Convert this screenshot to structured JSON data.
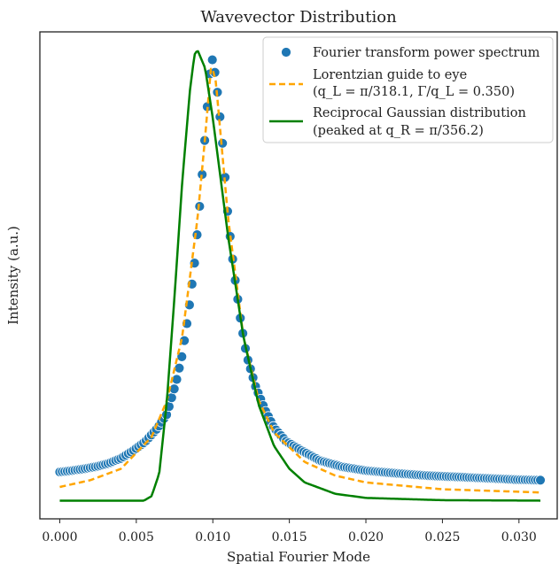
{
  "chart_data": {
    "type": "scatter",
    "title": "Wavevector Distribution",
    "xlabel": "Spatial Fourier Mode",
    "ylabel": "Intensity (a.u.)",
    "xlim": [
      -0.0013,
      0.0325
    ],
    "ylim": [
      -0.04,
      1.03
    ],
    "x_ticks": [
      0.0,
      0.005,
      0.01,
      0.015,
      0.02,
      0.025,
      0.03
    ],
    "x_tick_labels": [
      "0.000",
      "0.005",
      "0.010",
      "0.015",
      "0.020",
      "0.025",
      "0.030"
    ],
    "y_ticks_shown": false,
    "grid": false,
    "legend_position": "top-right",
    "series": [
      {
        "name": "Fourier transform power spectrum",
        "kind": "scatter",
        "color": "#1f77b4",
        "points": [
          [
            0.0,
            0.063
          ],
          [
            0.0008,
            0.066
          ],
          [
            0.0016,
            0.07
          ],
          [
            0.0024,
            0.075
          ],
          [
            0.0032,
            0.082
          ],
          [
            0.004,
            0.093
          ],
          [
            0.0048,
            0.11
          ],
          [
            0.0056,
            0.13
          ],
          [
            0.0064,
            0.16
          ],
          [
            0.007,
            0.19
          ],
          [
            0.0076,
            0.26
          ],
          [
            0.008,
            0.32
          ],
          [
            0.0084,
            0.41
          ],
          [
            0.0088,
            0.52
          ],
          [
            0.0092,
            0.67
          ],
          [
            0.0096,
            0.85
          ],
          [
            0.0099,
            0.98
          ],
          [
            0.0102,
            0.93
          ],
          [
            0.0106,
            0.8
          ],
          [
            0.011,
            0.62
          ],
          [
            0.0114,
            0.5
          ],
          [
            0.0118,
            0.4
          ],
          [
            0.0122,
            0.32
          ],
          [
            0.0128,
            0.25
          ],
          [
            0.0134,
            0.2
          ],
          [
            0.014,
            0.16
          ],
          [
            0.0148,
            0.13
          ],
          [
            0.0158,
            0.11
          ],
          [
            0.017,
            0.088
          ],
          [
            0.0185,
            0.074
          ],
          [
            0.02,
            0.066
          ],
          [
            0.022,
            0.06
          ],
          [
            0.024,
            0.055
          ],
          [
            0.026,
            0.052
          ],
          [
            0.028,
            0.049
          ],
          [
            0.03,
            0.046
          ],
          [
            0.0314,
            0.045
          ]
        ]
      },
      {
        "name": "Lorentzian guide to eye",
        "name_line2": "(q_L = π/318.1, Γ/q_L = 0.350)",
        "kind": "line",
        "style": "dashed",
        "color": "#ffa500",
        "points": [
          [
            0.0,
            0.03
          ],
          [
            0.002,
            0.045
          ],
          [
            0.004,
            0.07
          ],
          [
            0.006,
            0.14
          ],
          [
            0.007,
            0.22
          ],
          [
            0.008,
            0.36
          ],
          [
            0.009,
            0.62
          ],
          [
            0.0095,
            0.8
          ],
          [
            0.0098,
            0.92
          ],
          [
            0.0099,
            0.96
          ],
          [
            0.0102,
            0.92
          ],
          [
            0.011,
            0.62
          ],
          [
            0.012,
            0.36
          ],
          [
            0.013,
            0.22
          ],
          [
            0.014,
            0.15
          ],
          [
            0.016,
            0.085
          ],
          [
            0.018,
            0.055
          ],
          [
            0.02,
            0.04
          ],
          [
            0.025,
            0.025
          ],
          [
            0.0314,
            0.018
          ]
        ]
      },
      {
        "name": "Reciprocal Gaussian distribution",
        "name_line2": "(peaked at q_R = π/356.2)",
        "kind": "line",
        "style": "solid",
        "color": "#008000",
        "points": [
          [
            0.0,
            0.0
          ],
          [
            0.0055,
            0.0
          ],
          [
            0.006,
            0.01
          ],
          [
            0.0065,
            0.06
          ],
          [
            0.007,
            0.22
          ],
          [
            0.0075,
            0.45
          ],
          [
            0.008,
            0.7
          ],
          [
            0.0085,
            0.9
          ],
          [
            0.0088,
            0.98
          ],
          [
            0.009,
            0.99
          ],
          [
            0.0095,
            0.95
          ],
          [
            0.01,
            0.84
          ],
          [
            0.011,
            0.58
          ],
          [
            0.012,
            0.36
          ],
          [
            0.013,
            0.21
          ],
          [
            0.014,
            0.12
          ],
          [
            0.015,
            0.07
          ],
          [
            0.016,
            0.04
          ],
          [
            0.018,
            0.015
          ],
          [
            0.02,
            0.006
          ],
          [
            0.025,
            0.001
          ],
          [
            0.0314,
            0.0
          ]
        ]
      }
    ]
  }
}
